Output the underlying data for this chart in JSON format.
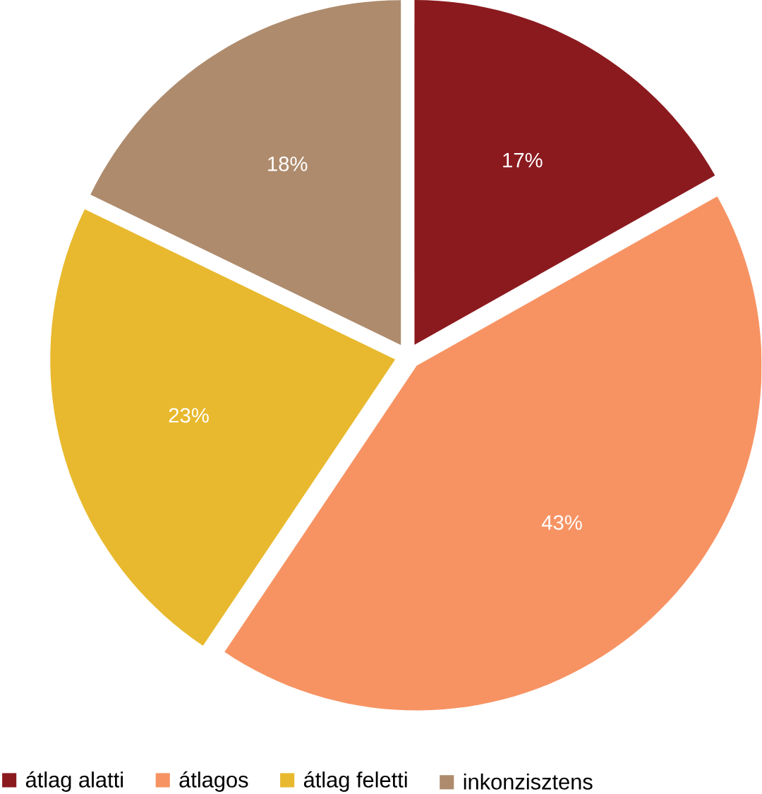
{
  "chart_data": {
    "type": "pie",
    "categories": [
      "átlag alatti",
      "átlagos",
      "átlag feletti",
      "inkonzisztens"
    ],
    "values": [
      17,
      43,
      23,
      18
    ],
    "value_labels": [
      "17%",
      "43%",
      "23%",
      "18%"
    ],
    "colors": [
      "#8b1a1f",
      "#f79363",
      "#e8b92e",
      "#ae8b6d"
    ],
    "legend": "bottom"
  }
}
